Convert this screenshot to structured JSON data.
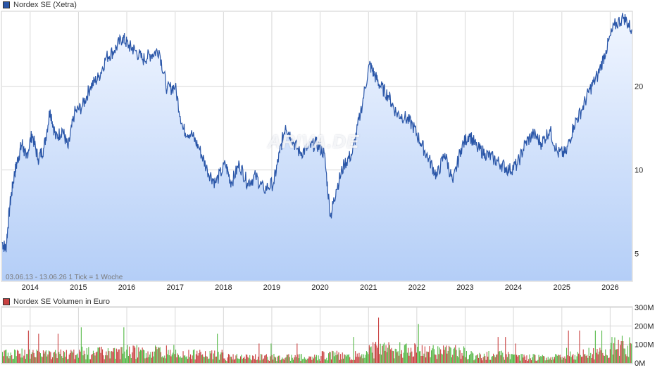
{
  "price_legend": "Nordex SE (Xetra)",
  "volume_legend": "Nordex SE Volumen in Euro",
  "range_note": "03.06.13 - 13.06.26   1 Tick = 1 Woche",
  "watermark": "ARIVA.DE",
  "colors": {
    "price_line": "#2a56a8",
    "area_top": "#f1f6ff",
    "area_bottom": "#b4cef7",
    "vol_up": "#54b845",
    "vol_down": "#c94040",
    "grid": "#d8d8d8"
  },
  "chart_data": [
    {
      "type": "area",
      "title": "Nordex SE (Xetra)",
      "yscale": "log",
      "ylim": [
        4,
        37
      ],
      "y_ticks": [
        5,
        10,
        20
      ],
      "x_ticks": [
        "2014",
        "2015",
        "2016",
        "2017",
        "2018",
        "2019",
        "2020",
        "2021",
        "2022",
        "2023",
        "2024",
        "2025",
        "2026"
      ],
      "x_range": [
        "2013-06-03",
        "2026-06-13"
      ],
      "grid": true,
      "series": [
        {
          "values_by_date": [
            [
              "2013-06-03",
              5.5
            ],
            [
              "2013-07-01",
              5.2
            ],
            [
              "2013-08-01",
              7.5
            ],
            [
              "2013-09-01",
              9.5
            ],
            [
              "2013-10-01",
              11.0
            ],
            [
              "2013-11-01",
              12.5
            ],
            [
              "2013-12-01",
              11.0
            ],
            [
              "2014-01-15",
              13.5
            ],
            [
              "2014-03-01",
              11.0
            ],
            [
              "2014-04-15",
              12.0
            ],
            [
              "2014-06-01",
              16.5
            ],
            [
              "2014-07-15",
              13.0
            ],
            [
              "2014-09-01",
              14.0
            ],
            [
              "2014-10-15",
              12.0
            ],
            [
              "2014-12-01",
              16.0
            ],
            [
              "2015-02-01",
              17.0
            ],
            [
              "2015-04-01",
              20.0
            ],
            [
              "2015-06-01",
              21.5
            ],
            [
              "2015-08-01",
              25.5
            ],
            [
              "2015-10-01",
              27.0
            ],
            [
              "2015-12-01",
              30.0
            ],
            [
              "2016-01-15",
              28.0
            ],
            [
              "2016-03-01",
              27.0
            ],
            [
              "2016-05-01",
              25.0
            ],
            [
              "2016-07-01",
              26.0
            ],
            [
              "2016-09-01",
              27.0
            ],
            [
              "2016-11-01",
              19.5
            ],
            [
              "2017-01-01",
              20.0
            ],
            [
              "2017-03-01",
              14.0
            ],
            [
              "2017-05-01",
              13.5
            ],
            [
              "2017-07-01",
              12.0
            ],
            [
              "2017-09-01",
              10.0
            ],
            [
              "2017-11-01",
              9.0
            ],
            [
              "2018-01-15",
              10.5
            ],
            [
              "2018-03-01",
              9.0
            ],
            [
              "2018-05-01",
              10.5
            ],
            [
              "2018-07-01",
              9.0
            ],
            [
              "2018-09-01",
              9.5
            ],
            [
              "2018-11-01",
              8.5
            ],
            [
              "2019-01-15",
              9.0
            ],
            [
              "2019-03-01",
              11.5
            ],
            [
              "2019-04-15",
              14.5
            ],
            [
              "2019-06-01",
              13.0
            ],
            [
              "2019-08-01",
              11.5
            ],
            [
              "2019-10-01",
              12.0
            ],
            [
              "2019-12-01",
              12.5
            ],
            [
              "2020-02-01",
              11.5
            ],
            [
              "2020-03-20",
              6.8
            ],
            [
              "2020-05-01",
              8.5
            ],
            [
              "2020-07-01",
              10.5
            ],
            [
              "2020-09-01",
              11.5
            ],
            [
              "2020-11-01",
              16.0
            ],
            [
              "2021-01-08",
              24.0
            ],
            [
              "2021-02-15",
              22.0
            ],
            [
              "2021-04-01",
              20.0
            ],
            [
              "2021-06-01",
              18.5
            ],
            [
              "2021-08-01",
              16.0
            ],
            [
              "2021-10-01",
              15.5
            ],
            [
              "2021-12-01",
              14.5
            ],
            [
              "2022-02-01",
              12.5
            ],
            [
              "2022-04-01",
              11.0
            ],
            [
              "2022-06-01",
              9.5
            ],
            [
              "2022-08-01",
              11.5
            ],
            [
              "2022-10-01",
              9.0
            ],
            [
              "2022-12-01",
              12.0
            ],
            [
              "2023-02-01",
              13.5
            ],
            [
              "2023-04-01",
              12.0
            ],
            [
              "2023-06-01",
              11.5
            ],
            [
              "2023-08-01",
              11.0
            ],
            [
              "2023-10-01",
              10.5
            ],
            [
              "2023-12-01",
              10.0
            ],
            [
              "2024-02-01",
              10.5
            ],
            [
              "2024-04-01",
              12.5
            ],
            [
              "2024-06-01",
              13.5
            ],
            [
              "2024-08-01",
              12.5
            ],
            [
              "2024-10-01",
              14.0
            ],
            [
              "2024-12-01",
              11.5
            ],
            [
              "2025-02-01",
              11.5
            ],
            [
              "2025-04-01",
              14.5
            ],
            [
              "2025-06-01",
              16.5
            ],
            [
              "2025-08-01",
              19.5
            ],
            [
              "2025-10-01",
              22.0
            ],
            [
              "2025-12-01",
              27.0
            ],
            [
              "2026-02-01",
              33.0
            ],
            [
              "2026-04-15",
              35.5
            ],
            [
              "2026-06-13",
              32.0
            ]
          ]
        }
      ]
    },
    {
      "type": "bar",
      "title": "Nordex SE Volumen in Euro",
      "ylim": [
        0,
        300
      ],
      "y_ticks": [
        "0M",
        "100M",
        "200M",
        "300M"
      ],
      "series": [
        {
          "values_by_year": [
            [
              "2013",
              50
            ],
            [
              "2014",
              45
            ],
            [
              "2015",
              55
            ],
            [
              "2016",
              60
            ],
            [
              "2017",
              45
            ],
            [
              "2018",
              30
            ],
            [
              "2019",
              30
            ],
            [
              "2020",
              40
            ],
            [
              "2021",
              70
            ],
            [
              "2022",
              60
            ],
            [
              "2023",
              40
            ],
            [
              "2024",
              30
            ],
            [
              "2025",
              50
            ],
            [
              "2026",
              90
            ]
          ]
        }
      ]
    }
  ]
}
